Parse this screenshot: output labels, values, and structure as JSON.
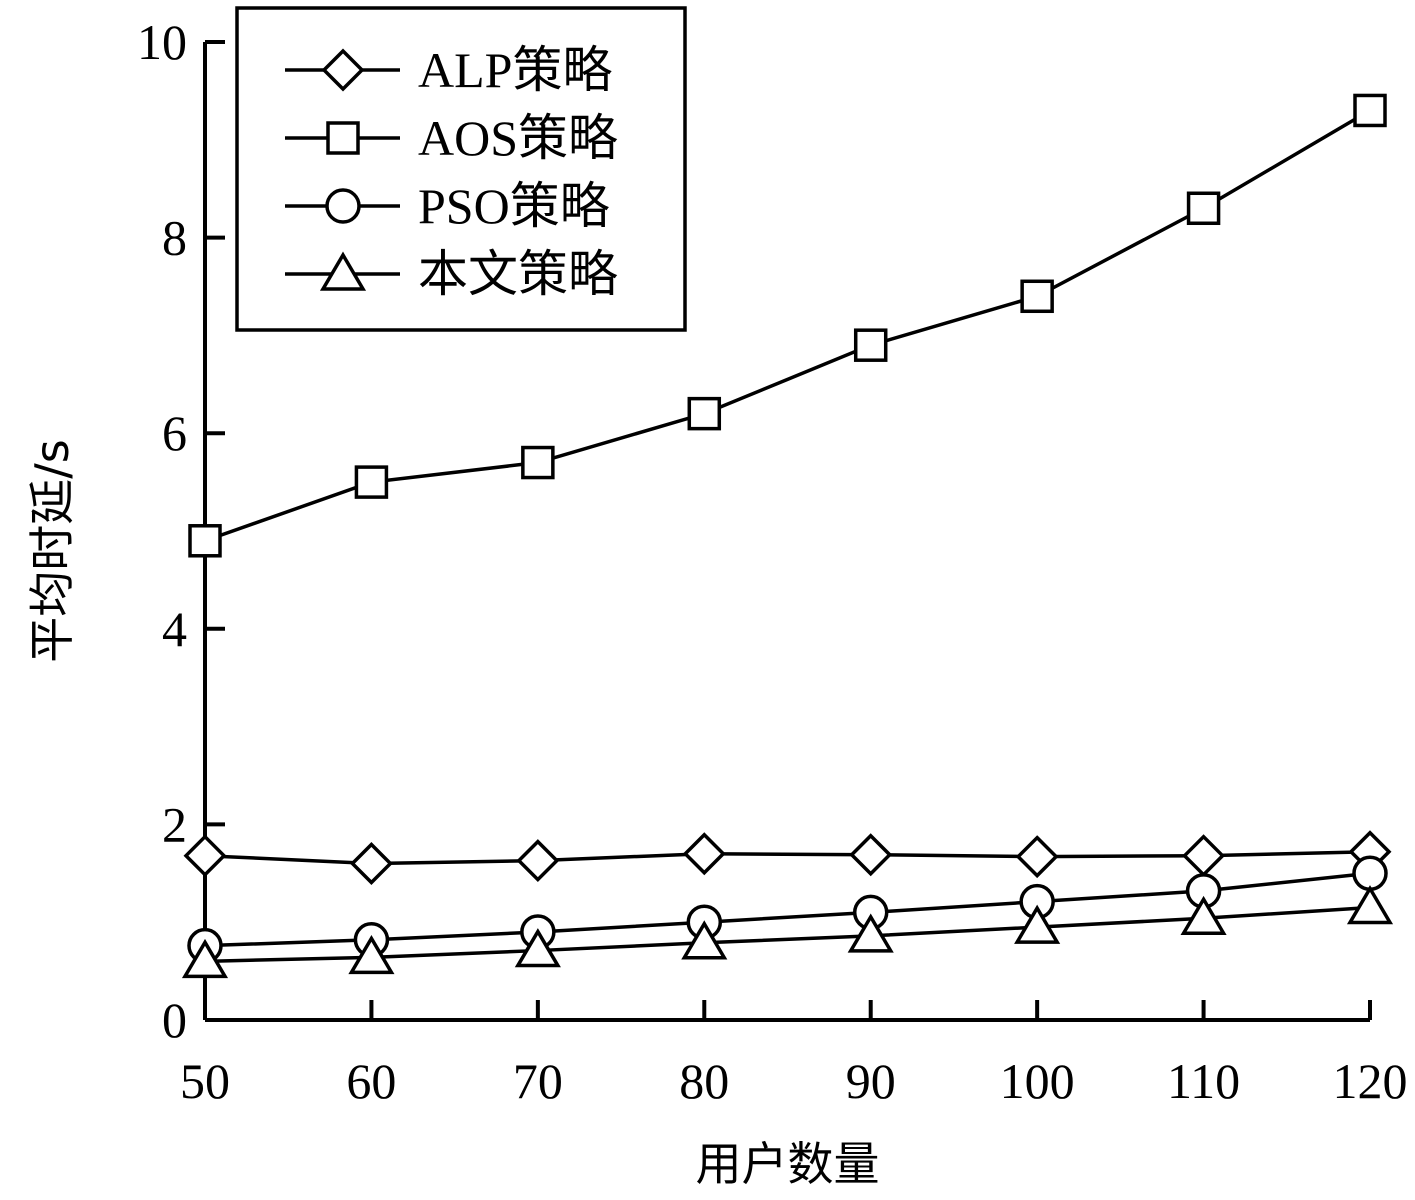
{
  "chart_data": {
    "type": "line",
    "title": "",
    "xlabel": "用户数量",
    "ylabel": "平均时延/s",
    "x": [
      50,
      60,
      70,
      80,
      90,
      100,
      110,
      120
    ],
    "xlim": [
      50,
      120
    ],
    "ylim": [
      0,
      10
    ],
    "yticks": [
      0,
      2,
      4,
      6,
      8,
      10
    ],
    "grid": false,
    "legend_position": "top-left",
    "series": [
      {
        "name": "ALP策略",
        "marker": "diamond",
        "values": [
          1.68,
          1.6,
          1.63,
          1.7,
          1.69,
          1.67,
          1.68,
          1.72
        ]
      },
      {
        "name": "AOS策略",
        "marker": "square",
        "values": [
          4.9,
          5.5,
          5.7,
          6.2,
          6.9,
          7.4,
          8.3,
          9.3
        ]
      },
      {
        "name": "PSO策略",
        "marker": "circle",
        "values": [
          0.76,
          0.82,
          0.9,
          1.0,
          1.1,
          1.21,
          1.32,
          1.5
        ]
      },
      {
        "name": "本文策略",
        "marker": "triangle",
        "values": [
          0.6,
          0.64,
          0.71,
          0.79,
          0.86,
          0.95,
          1.04,
          1.15
        ]
      }
    ]
  }
}
